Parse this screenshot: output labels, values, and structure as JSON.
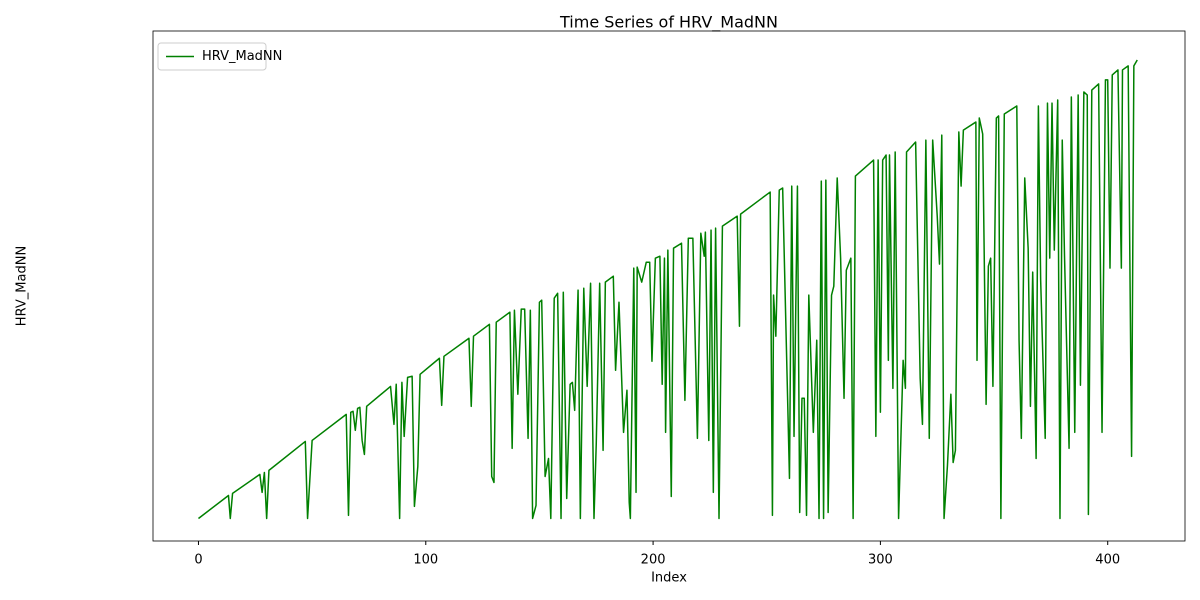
{
  "chart_data": {
    "type": "line",
    "title": "Time Series of HRV_MadNN",
    "x_label": "Index",
    "y_label": "HRV_MadNN",
    "xlim": [
      -20,
      434
    ],
    "xticks": [
      0,
      100,
      200,
      300,
      400
    ],
    "ylim": [
      -14,
      303
    ],
    "legend": "upper left",
    "x": [
      0,
      13.2,
      14,
      15,
      27,
      28,
      29,
      30,
      31,
      47,
      48,
      50,
      65,
      66,
      67,
      68,
      69,
      70,
      71,
      72,
      73,
      74,
      84.5,
      86,
      87,
      88.5,
      89.5,
      90.5,
      92,
      94,
      95,
      96.5,
      97.5,
      106,
      107,
      108,
      119,
      120,
      121,
      128,
      129,
      130,
      131,
      137,
      138,
      139,
      140.5,
      142,
      143.5,
      145,
      146,
      147,
      148.5,
      150,
      151,
      152.5,
      154,
      155,
      156.5,
      158,
      159.5,
      160.5,
      162,
      163.5,
      164.5,
      165.5,
      167,
      168,
      169.5,
      171,
      172.5,
      174,
      175,
      176.5,
      178,
      179,
      182.5,
      183.5,
      185,
      187,
      188.5,
      189.5,
      190,
      191.5,
      192.5,
      193,
      195,
      197,
      198.5,
      199.5,
      201,
      203,
      204,
      205,
      205.5,
      206.5,
      208,
      209,
      212.5,
      214,
      215.5,
      217.5,
      219.5,
      221,
      222.5,
      223,
      224.5,
      225.5,
      226.5,
      227.5,
      229,
      230.5,
      237,
      238,
      238.5,
      251.5,
      252.5,
      253,
      254,
      255.5,
      257,
      260,
      261,
      262,
      263.5,
      264.5,
      265.5,
      266.5,
      267.5,
      268.5,
      270.5,
      272,
      273,
      274,
      275,
      276,
      277,
      278.5,
      279.5,
      281,
      282.5,
      284,
      285,
      287,
      288,
      289,
      297,
      298,
      299,
      300,
      301,
      302.5,
      303.5,
      304,
      305.5,
      306.5,
      308,
      310,
      311,
      311.5,
      315.5,
      317.5,
      318.5,
      320,
      321.5,
      323,
      325,
      326,
      327,
      328,
      329.5,
      331,
      332,
      333,
      334.5,
      335.5,
      336.5,
      342,
      342.5,
      343.5,
      345,
      346.5,
      347.5,
      348.5,
      349.5,
      351,
      352,
      353,
      354.5,
      360,
      361,
      362,
      363.5,
      365,
      366,
      367,
      368.5,
      369.5,
      370.5,
      372.5,
      373.5,
      374.5,
      375.5,
      376.5,
      378,
      379,
      380,
      381,
      383,
      384,
      385.5,
      387,
      388,
      389.5,
      391,
      391.5,
      393,
      396,
      397.5,
      399,
      400,
      401,
      402,
      404.5,
      406,
      406.5,
      409,
      410.5,
      411.5,
      413
    ],
    "series": [
      {
        "name": "HRV_MadNN",
        "color": "#008000",
        "values": [
          0,
          14.3,
          0,
          15.6,
          27.4,
          16.2,
          28.6,
          0,
          29.9,
          47.9,
          0,
          48.5,
          64.7,
          1.9,
          66,
          66.6,
          54.8,
          68.4,
          69.1,
          48.5,
          39.8,
          69.7,
          82.1,
          58.5,
          83.4,
          0,
          84.6,
          51,
          87.7,
          88.4,
          7.5,
          32.4,
          89.6,
          99.6,
          70.3,
          100.8,
          112,
          69.7,
          113.3,
          120.7,
          26.1,
          22.4,
          122,
          128.2,
          43.6,
          129.4,
          77.2,
          130.1,
          130.1,
          49.8,
          129.4,
          0,
          8.1,
          134.4,
          135.7,
          26.1,
          37.3,
          0,
          136.9,
          140,
          0,
          140.6,
          12.4,
          83.4,
          84.6,
          67.2,
          141.9,
          0,
          143.1,
          82.1,
          146.2,
          0,
          46.7,
          146.2,
          42.3,
          146.9,
          150.6,
          92.1,
          134.4,
          53.5,
          79.7,
          10,
          0,
          155.6,
          16.2,
          156.2,
          146.9,
          159.3,
          159.3,
          97.7,
          161.8,
          163,
          83.4,
          161.8,
          53.5,
          166.8,
          13.7,
          168,
          171.1,
          73.4,
          174.2,
          174.2,
          49.8,
          177.3,
          163,
          178,
          48.5,
          179.2,
          16.2,
          180.5,
          0,
          181.7,
          187.9,
          119.5,
          189.2,
          202.9,
          1.9,
          138.8,
          113.3,
          204.1,
          205.4,
          24.9,
          206.6,
          51,
          206.6,
          3.7,
          74.7,
          74.7,
          1.9,
          138.8,
          53.5,
          110.8,
          0,
          209.7,
          0,
          210.3,
          3.7,
          138.8,
          144.4,
          211.6,
          161.8,
          74.7,
          154.3,
          161.8,
          0,
          212.8,
          222.8,
          51,
          222.8,
          66,
          222.8,
          225.9,
          98.3,
          225.9,
          80.9,
          227.8,
          0,
          98.3,
          80.9,
          227.8,
          234,
          87.1,
          58.5,
          235.2,
          49.8,
          235.2,
          187.9,
          158.1,
          238.3,
          0,
          33,
          77.2,
          34.8,
          42.3,
          240.2,
          206.6,
          241.4,
          246.4,
          98.3,
          248.9,
          239,
          70.9,
          156.8,
          161.8,
          82.1,
          248.9,
          250.2,
          0,
          251.4,
          256.4,
          110.8,
          49.8,
          211.6,
          168,
          69.7,
          153.1,
          37.3,
          256.4,
          148.1,
          49.8,
          258.2,
          161.8,
          258.2,
          166.8,
          260.1,
          0,
          235.2,
          163,
          43.6,
          262,
          53.5,
          263.2,
          82.8,
          265.1,
          263.2,
          2.5,
          266.3,
          270.1,
          53.5,
          272.6,
          272.6,
          155.6,
          275.7,
          278.8,
          155.6,
          278.8,
          281.3,
          38.6,
          281.3,
          285
        ]
      }
    ]
  }
}
